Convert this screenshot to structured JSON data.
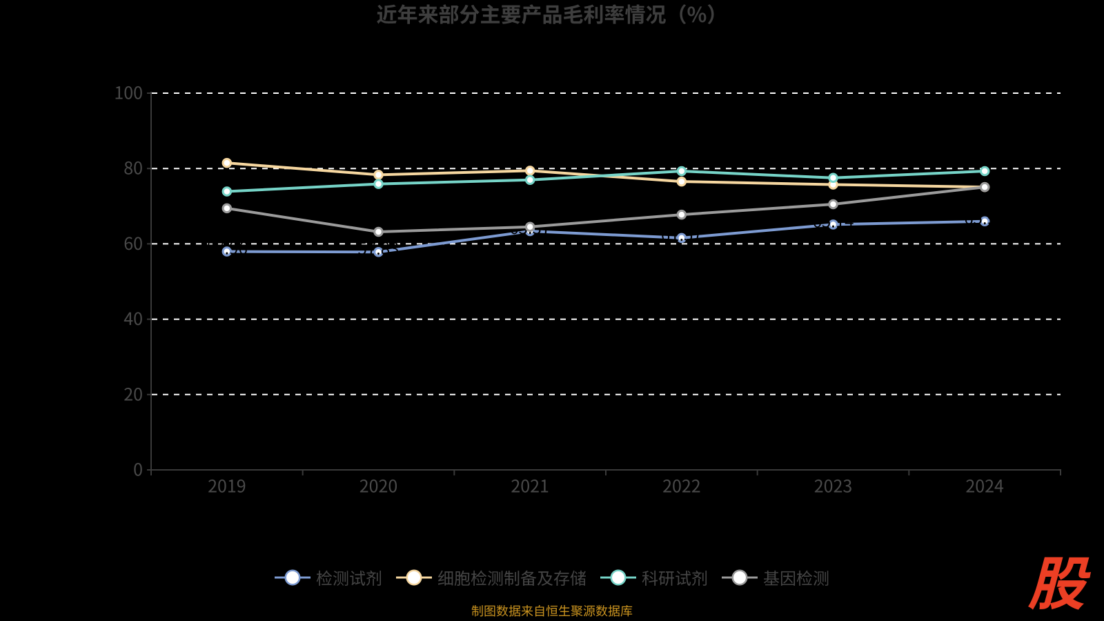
{
  "title": {
    "text": "近年来部分主要产品毛利率情况（%）"
  },
  "caption": {
    "text": "制图数据来自恒生聚源数据库",
    "color": "#c8921f"
  },
  "logo": {
    "text": "股",
    "color": "#ec3f24"
  },
  "chart_data": {
    "type": "line",
    "title": "近年来部分主要产品毛利率情况（%）",
    "categories": [
      "2019",
      "2020",
      "2021",
      "2022",
      "2023",
      "2024"
    ],
    "series": [
      {
        "name": "检测试剂",
        "color": "#7d9bd2",
        "values": [
          57.96,
          57.83,
          63.37,
          61.57,
          65.14,
          65.97
        ],
        "labels": [
          "57.96",
          "57.83",
          "63.37",
          "61.57",
          "65.14",
          "65.97"
        ]
      },
      {
        "name": "细胞检测制备及存储",
        "color": "#f6d7a0",
        "values": [
          81.47,
          78.33,
          79.41,
          76.54,
          75.73,
          75.07
        ]
      },
      {
        "name": "科研试剂",
        "color": "#76d4c8",
        "values": [
          73.9,
          75.9,
          76.96,
          79.3,
          77.51,
          79.3
        ]
      },
      {
        "name": "基因检测",
        "color": "#9b9b9b",
        "values": [
          69.43,
          63.19,
          64.51,
          67.75,
          70.51,
          75.07
        ]
      }
    ],
    "xlabel": "",
    "ylabel": "",
    "ylim": [
      0,
      100
    ],
    "yticks": [
      0,
      20,
      40,
      60,
      80,
      100
    ],
    "grid": "horizontal-dashed-white",
    "legend_position": "bottom",
    "data_label_color": "#000000",
    "axis_label_color": "#4a4a4a",
    "axis_line_color": "#3a3a3a"
  }
}
